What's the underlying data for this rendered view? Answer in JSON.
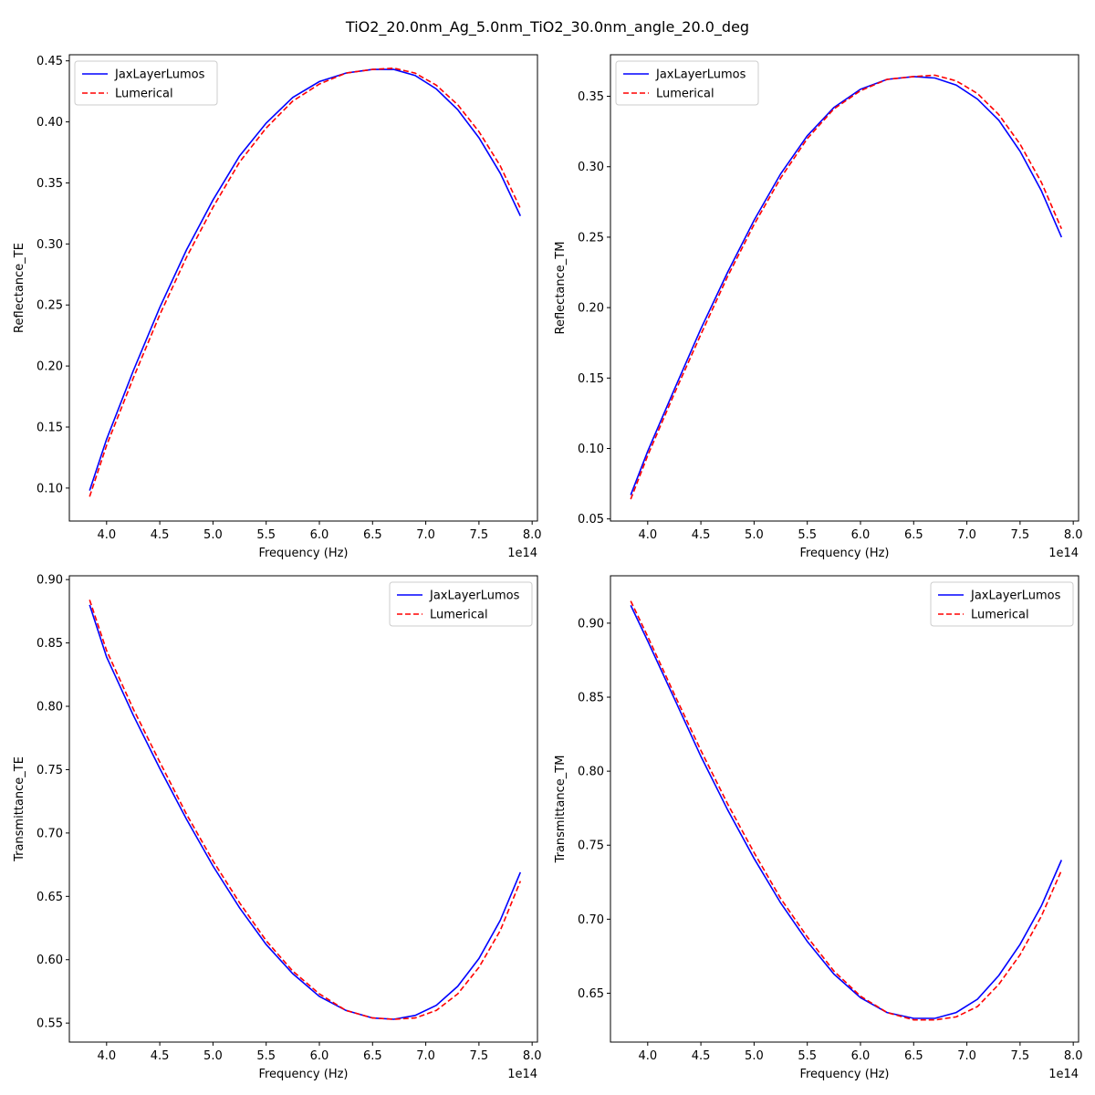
{
  "figure": {
    "suptitle": "TiO2_20.0nm_Ag_5.0nm_TiO2_30.0nm_angle_20.0_deg"
  },
  "colors": {
    "jax": "#0000ff",
    "lumerical": "#ff0000",
    "axes": "#000000",
    "legend_border": "#cccccc"
  },
  "chart_data": [
    {
      "type": "line",
      "xlabel": "Frequency (Hz)",
      "ylabel": "Reflectance_TE",
      "x_offset_label": "1e14",
      "xlim": [
        3.65,
        8.05
      ],
      "ylim": [
        0.073,
        0.455
      ],
      "xticks": [
        4.0,
        4.5,
        5.0,
        5.5,
        6.0,
        6.5,
        7.0,
        7.5,
        8.0
      ],
      "xtick_labels": [
        "4.0",
        "4.5",
        "5.0",
        "5.5",
        "6.0",
        "6.5",
        "7.0",
        "7.5",
        "8.0"
      ],
      "yticks": [
        0.1,
        0.15,
        0.2,
        0.25,
        0.3,
        0.35,
        0.4,
        0.45
      ],
      "ytick_labels": [
        "0.10",
        "0.15",
        "0.20",
        "0.25",
        "0.30",
        "0.35",
        "0.40",
        "0.45"
      ],
      "legend_position": "upper-left",
      "x": [
        3.84,
        4.0,
        4.25,
        4.5,
        4.75,
        5.0,
        5.25,
        5.5,
        5.75,
        6.0,
        6.25,
        6.5,
        6.7,
        6.9,
        7.1,
        7.3,
        7.5,
        7.7,
        7.89
      ],
      "series": [
        {
          "name": "JaxLayerLumos",
          "style": "solid",
          "values": [
            0.098,
            0.14,
            0.196,
            0.248,
            0.295,
            0.336,
            0.372,
            0.399,
            0.42,
            0.433,
            0.44,
            0.443,
            0.443,
            0.438,
            0.427,
            0.41,
            0.387,
            0.358,
            0.323
          ]
        },
        {
          "name": "Lumerical",
          "style": "dashed",
          "values": [
            0.093,
            0.135,
            0.19,
            0.242,
            0.289,
            0.33,
            0.367,
            0.395,
            0.417,
            0.431,
            0.44,
            0.443,
            0.444,
            0.44,
            0.43,
            0.414,
            0.392,
            0.364,
            0.329
          ]
        }
      ]
    },
    {
      "type": "line",
      "xlabel": "Frequency (Hz)",
      "ylabel": "Reflectance_TM",
      "x_offset_label": "1e14",
      "xlim": [
        3.65,
        8.05
      ],
      "ylim": [
        0.0485,
        0.3795
      ],
      "xticks": [
        4.0,
        4.5,
        5.0,
        5.5,
        6.0,
        6.5,
        7.0,
        7.5,
        8.0
      ],
      "xtick_labels": [
        "4.0",
        "4.5",
        "5.0",
        "5.5",
        "6.0",
        "6.5",
        "7.0",
        "7.5",
        "8.0"
      ],
      "yticks": [
        0.05,
        0.1,
        0.15,
        0.2,
        0.25,
        0.3,
        0.35
      ],
      "ytick_labels": [
        "0.05",
        "0.10",
        "0.15",
        "0.20",
        "0.25",
        "0.30",
        "0.35"
      ],
      "legend_position": "upper-left",
      "x": [
        3.84,
        4.0,
        4.25,
        4.5,
        4.75,
        5.0,
        5.25,
        5.5,
        5.75,
        6.0,
        6.25,
        6.5,
        6.7,
        6.9,
        7.1,
        7.3,
        7.5,
        7.7,
        7.89
      ],
      "series": [
        {
          "name": "JaxLayerLumos",
          "style": "solid",
          "values": [
            0.067,
            0.098,
            0.142,
            0.185,
            0.225,
            0.262,
            0.295,
            0.322,
            0.342,
            0.355,
            0.362,
            0.364,
            0.363,
            0.358,
            0.348,
            0.333,
            0.311,
            0.283,
            0.25
          ]
        },
        {
          "name": "Lumerical",
          "style": "dashed",
          "values": [
            0.064,
            0.095,
            0.139,
            0.181,
            0.222,
            0.259,
            0.292,
            0.32,
            0.341,
            0.354,
            0.362,
            0.364,
            0.365,
            0.361,
            0.352,
            0.337,
            0.316,
            0.289,
            0.256
          ]
        }
      ]
    },
    {
      "type": "line",
      "xlabel": "Frequency (Hz)",
      "ylabel": "Transmittance_TE",
      "x_offset_label": "1e14",
      "xlim": [
        3.65,
        8.05
      ],
      "ylim": [
        0.535,
        0.903
      ],
      "xticks": [
        4.0,
        4.5,
        5.0,
        5.5,
        6.0,
        6.5,
        7.0,
        7.5,
        8.0
      ],
      "xtick_labels": [
        "4.0",
        "4.5",
        "5.0",
        "5.5",
        "6.0",
        "6.5",
        "7.0",
        "7.5",
        "8.0"
      ],
      "yticks": [
        0.55,
        0.6,
        0.65,
        0.7,
        0.75,
        0.8,
        0.85,
        0.9
      ],
      "ytick_labels": [
        "0.55",
        "0.60",
        "0.65",
        "0.70",
        "0.75",
        "0.80",
        "0.85",
        "0.90"
      ],
      "legend_position": "upper-right",
      "x": [
        3.84,
        4.0,
        4.25,
        4.5,
        4.75,
        5.0,
        5.25,
        5.5,
        5.75,
        6.0,
        6.25,
        6.5,
        6.7,
        6.9,
        7.1,
        7.3,
        7.5,
        7.7,
        7.89
      ],
      "series": [
        {
          "name": "JaxLayerLumos",
          "style": "solid",
          "values": [
            0.88,
            0.839,
            0.793,
            0.751,
            0.711,
            0.674,
            0.641,
            0.612,
            0.589,
            0.571,
            0.56,
            0.554,
            0.553,
            0.556,
            0.564,
            0.579,
            0.601,
            0.631,
            0.669
          ]
        },
        {
          "name": "Lumerical",
          "style": "dashed",
          "values": [
            0.884,
            0.844,
            0.798,
            0.756,
            0.715,
            0.678,
            0.645,
            0.615,
            0.591,
            0.573,
            0.56,
            0.554,
            0.553,
            0.554,
            0.56,
            0.573,
            0.594,
            0.623,
            0.662
          ]
        }
      ]
    },
    {
      "type": "line",
      "xlabel": "Frequency (Hz)",
      "ylabel": "Transmittance_TM",
      "x_offset_label": "1e14",
      "xlim": [
        3.65,
        8.05
      ],
      "ylim": [
        0.617,
        0.932
      ],
      "xticks": [
        4.0,
        4.5,
        5.0,
        5.5,
        6.0,
        6.5,
        7.0,
        7.5,
        8.0
      ],
      "xtick_labels": [
        "4.0",
        "4.5",
        "5.0",
        "5.5",
        "6.0",
        "6.5",
        "7.0",
        "7.5",
        "8.0"
      ],
      "yticks": [
        0.65,
        0.7,
        0.75,
        0.8,
        0.85,
        0.9
      ],
      "ytick_labels": [
        "0.65",
        "0.70",
        "0.75",
        "0.80",
        "0.85",
        "0.90"
      ],
      "legend_position": "upper-right",
      "x": [
        3.84,
        4.0,
        4.25,
        4.5,
        4.75,
        5.0,
        5.25,
        5.5,
        5.75,
        6.0,
        6.25,
        6.5,
        6.7,
        6.9,
        7.1,
        7.3,
        7.5,
        7.7,
        7.89
      ],
      "series": [
        {
          "name": "JaxLayerLumos",
          "style": "solid",
          "values": [
            0.912,
            0.888,
            0.849,
            0.81,
            0.774,
            0.741,
            0.711,
            0.685,
            0.663,
            0.647,
            0.637,
            0.633,
            0.633,
            0.637,
            0.646,
            0.662,
            0.683,
            0.709,
            0.74
          ]
        },
        {
          "name": "Lumerical",
          "style": "dashed",
          "values": [
            0.915,
            0.891,
            0.852,
            0.814,
            0.778,
            0.745,
            0.714,
            0.688,
            0.665,
            0.648,
            0.637,
            0.632,
            0.632,
            0.634,
            0.641,
            0.656,
            0.676,
            0.702,
            0.733
          ]
        }
      ]
    }
  ]
}
